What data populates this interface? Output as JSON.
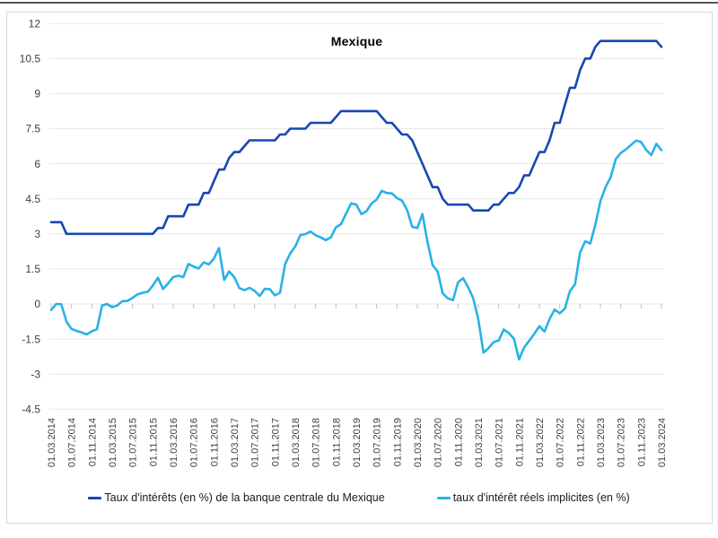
{
  "title": "Mexique",
  "colors": {
    "policy_line": "#1747b4",
    "real_line": "#27b2e6",
    "gridline": "#e8e8e8",
    "tick": "#c0c0c0",
    "axis_text": "#404040",
    "border": "#d9d9d9",
    "top_edge": "#55565a"
  },
  "chart_data": {
    "type": "line",
    "title": "Mexique",
    "xlabel": "",
    "ylabel": "",
    "grid": true,
    "legend_position": "bottom",
    "ylim": [
      -4.5,
      12
    ],
    "y_tick_values": [
      12,
      10.5,
      9,
      7.5,
      6,
      4.5,
      3,
      1.5,
      0,
      -1.5,
      -3,
      -4.5
    ],
    "y_tick_labels": [
      "12",
      "10.5",
      "9",
      "7.5",
      "6",
      "4.5",
      "3",
      "1.5",
      "0",
      "-1.5",
      "-3",
      "-4.5"
    ],
    "x_frequency": "monthly",
    "x_tick_every_n_months": 4,
    "x_tick_labels": [
      "01.03.2014",
      "01.07.2014",
      "01.11.2014",
      "01.03.2015",
      "01.07.2015",
      "01.11.2015",
      "01.03.2016",
      "01.07.2016",
      "01.11.2016",
      "01.03.2017",
      "01.07.2017",
      "01.11.2017",
      "01.03.2018",
      "01.07.2018",
      "01.11.2018",
      "01.03.2019",
      "01.07.2019",
      "01.11.2019",
      "01.03.2020",
      "01.07.2020",
      "01.11.2020",
      "01.03.2021",
      "01.07.2021",
      "01.11.2021",
      "01.03.2022",
      "01.07.2022",
      "01.11.2022",
      "01.03.2023",
      "01.07.2023",
      "01.11.2023",
      "01.03.2024"
    ],
    "series": [
      {
        "name": "Taux d'intérêts (en %) de la banque centrale du Mexique",
        "color": "#1747b4",
        "values": [
          3.5,
          3.5,
          3.5,
          3.0,
          3.0,
          3.0,
          3.0,
          3.0,
          3.0,
          3.0,
          3.0,
          3.0,
          3.0,
          3.0,
          3.0,
          3.0,
          3.0,
          3.0,
          3.0,
          3.0,
          3.0,
          3.25,
          3.25,
          3.75,
          3.75,
          3.75,
          3.75,
          4.25,
          4.25,
          4.25,
          4.75,
          4.75,
          5.25,
          5.75,
          5.75,
          6.25,
          6.5,
          6.5,
          6.75,
          7.0,
          7.0,
          7.0,
          7.0,
          7.0,
          7.0,
          7.25,
          7.25,
          7.5,
          7.5,
          7.5,
          7.5,
          7.75,
          7.75,
          7.75,
          7.75,
          7.75,
          8.0,
          8.25,
          8.25,
          8.25,
          8.25,
          8.25,
          8.25,
          8.25,
          8.25,
          8.0,
          7.75,
          7.75,
          7.5,
          7.25,
          7.25,
          7.0,
          6.5,
          6.0,
          5.5,
          5.0,
          5.0,
          4.5,
          4.25,
          4.25,
          4.25,
          4.25,
          4.25,
          4.0,
          4.0,
          4.0,
          4.0,
          4.25,
          4.25,
          4.5,
          4.75,
          4.75,
          5.0,
          5.5,
          5.5,
          6.0,
          6.5,
          6.5,
          7.0,
          7.75,
          7.75,
          8.5,
          9.25,
          9.25,
          10.0,
          10.5,
          10.5,
          11.0,
          11.25,
          11.25,
          11.25,
          11.25,
          11.25,
          11.25,
          11.25,
          11.25,
          11.25,
          11.25,
          11.25,
          11.25,
          11.0
        ]
      },
      {
        "name": "taux d'intérêt réels implicites (en %)",
        "color": "#27b2e6",
        "values": [
          -0.26,
          0.0,
          -0.01,
          -0.75,
          -1.07,
          -1.15,
          -1.22,
          -1.3,
          -1.17,
          -1.08,
          -0.07,
          0.0,
          -0.14,
          -0.06,
          0.12,
          0.13,
          0.26,
          0.41,
          0.48,
          0.52,
          0.79,
          1.12,
          0.64,
          0.88,
          1.15,
          1.21,
          1.15,
          1.71,
          1.6,
          1.52,
          1.78,
          1.69,
          1.94,
          2.39,
          1.03,
          1.39,
          1.15,
          0.68,
          0.59,
          0.69,
          0.56,
          0.34,
          0.65,
          0.63,
          0.37,
          0.48,
          1.7,
          2.16,
          2.46,
          2.95,
          2.99,
          3.1,
          2.94,
          2.85,
          2.73,
          2.85,
          3.28,
          3.42,
          3.88,
          4.31,
          4.25,
          3.84,
          3.97,
          4.3,
          4.47,
          4.84,
          4.75,
          4.73,
          4.53,
          4.42,
          4.01,
          3.3,
          3.25,
          3.85,
          2.66,
          1.67,
          1.38,
          0.45,
          0.24,
          0.16,
          0.92,
          1.1,
          0.71,
          0.24,
          -0.67,
          -2.08,
          -1.89,
          -1.63,
          -1.56,
          -1.09,
          -1.25,
          -1.49,
          -2.37,
          -1.86,
          -1.57,
          -1.28,
          -0.95,
          -1.18,
          -0.65,
          -0.24,
          -0.4,
          -0.2,
          0.55,
          0.84,
          2.2,
          2.68,
          2.59,
          3.38,
          4.4,
          5.0,
          5.41,
          6.19,
          6.46,
          6.61,
          6.8,
          6.99,
          6.93,
          6.59,
          6.37,
          6.85,
          6.58
        ]
      }
    ]
  },
  "legend": {
    "items": [
      {
        "label": "Taux d'intérêts (en %) de la banque centrale du Mexique",
        "color": "#1747b4"
      },
      {
        "label": "taux d'intérêt réels implicites (en %)",
        "color": "#27b2e6"
      }
    ]
  }
}
